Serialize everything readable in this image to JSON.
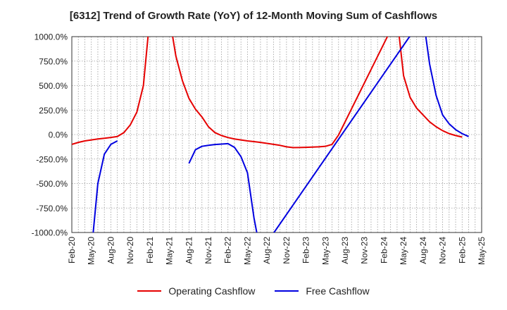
{
  "chart_data": {
    "type": "line",
    "title": "[6312]  Trend of Growth Rate (YoY) of 12-Month Moving Sum of Cashflows",
    "xlabel": "",
    "ylabel": "",
    "ylim": [
      -1000,
      1000
    ],
    "yticks": [
      1000,
      750,
      500,
      250,
      0,
      -250,
      -500,
      -750,
      -1000
    ],
    "ytick_labels": [
      "1000.0%",
      "750.0%",
      "500.0%",
      "250.0%",
      "0.0%",
      "-250.0%",
      "-500.0%",
      "-750.0%",
      "-1000.0%"
    ],
    "xtick_labels": [
      "Feb-20",
      "May-20",
      "Aug-20",
      "Nov-20",
      "Feb-21",
      "May-21",
      "Aug-21",
      "Nov-21",
      "Feb-22",
      "May-22",
      "Aug-22",
      "Nov-22",
      "Feb-23",
      "May-23",
      "Aug-23",
      "Nov-23",
      "Feb-24",
      "May-24",
      "Aug-24",
      "Nov-24",
      "Feb-25",
      "May-25"
    ],
    "grid": true,
    "legend_position": "bottom",
    "series": [
      {
        "name": "Operating Cashflow",
        "color": "#e60000",
        "points": [
          [
            "2020-02",
            -100
          ],
          [
            "2020-03",
            -80
          ],
          [
            "2020-04",
            -65
          ],
          [
            "2020-05",
            -55
          ],
          [
            "2020-06",
            -45
          ],
          [
            "2020-07",
            -38
          ],
          [
            "2020-08",
            -30
          ],
          [
            "2020-09",
            -20
          ],
          [
            "2020-10",
            20
          ],
          [
            "2020-11",
            100
          ],
          [
            "2020-12",
            230
          ],
          [
            "2021-01",
            500
          ],
          [
            "2021-02",
            1200
          ],
          [
            "2021-03",
            null
          ],
          [
            "2021-04",
            null
          ],
          [
            "2021-05",
            1200
          ],
          [
            "2021-06",
            800
          ],
          [
            "2021-07",
            550
          ],
          [
            "2021-08",
            370
          ],
          [
            "2021-09",
            260
          ],
          [
            "2021-10",
            180
          ],
          [
            "2021-11",
            80
          ],
          [
            "2021-12",
            20
          ],
          [
            "2022-01",
            -10
          ],
          [
            "2022-02",
            -30
          ],
          [
            "2022-03",
            -45
          ],
          [
            "2022-04",
            -55
          ],
          [
            "2022-05",
            -65
          ],
          [
            "2022-06",
            -72
          ],
          [
            "2022-07",
            -80
          ],
          [
            "2022-08",
            -90
          ],
          [
            "2022-09",
            -100
          ],
          [
            "2022-10",
            -110
          ],
          [
            "2022-11",
            -125
          ],
          [
            "2022-12",
            -133
          ],
          [
            "2023-01",
            -132
          ],
          [
            "2023-02",
            -130
          ],
          [
            "2023-03",
            -128
          ],
          [
            "2023-04",
            -125
          ],
          [
            "2023-05",
            -120
          ],
          [
            "2023-06",
            -100
          ],
          [
            "2023-07",
            -5
          ],
          [
            "2024-04",
            1200
          ],
          [
            "2024-05",
            600
          ],
          [
            "2024-06",
            380
          ],
          [
            "2024-07",
            270
          ],
          [
            "2024-08",
            200
          ],
          [
            "2024-09",
            130
          ],
          [
            "2024-10",
            80
          ],
          [
            "2024-11",
            40
          ],
          [
            "2024-12",
            10
          ],
          [
            "2025-01",
            -10
          ],
          [
            "2025-02",
            -25
          ]
        ]
      },
      {
        "name": "Free Cashflow",
        "color": "#0000e0",
        "points": [
          [
            "2020-05",
            -1200
          ],
          [
            "2020-06",
            -500
          ],
          [
            "2020-07",
            -200
          ],
          [
            "2020-08",
            -100
          ],
          [
            "2020-09",
            -65
          ],
          [
            "2020-10",
            null
          ],
          [
            "2021-08",
            -295
          ],
          [
            "2021-09",
            -155
          ],
          [
            "2021-10",
            -120
          ],
          [
            "2021-11",
            -110
          ],
          [
            "2021-12",
            -102
          ],
          [
            "2022-01",
            -97
          ],
          [
            "2022-02",
            -93
          ],
          [
            "2022-03",
            -130
          ],
          [
            "2022-04",
            -225
          ],
          [
            "2022-05",
            -390
          ],
          [
            "2022-06",
            -850
          ],
          [
            "2022-07",
            -1200
          ],
          [
            "2024-08",
            1200
          ],
          [
            "2024-09",
            720
          ],
          [
            "2024-10",
            400
          ],
          [
            "2024-11",
            200
          ],
          [
            "2024-12",
            110
          ],
          [
            "2025-01",
            50
          ],
          [
            "2025-02",
            10
          ],
          [
            "2025-03",
            -20
          ]
        ]
      }
    ]
  }
}
